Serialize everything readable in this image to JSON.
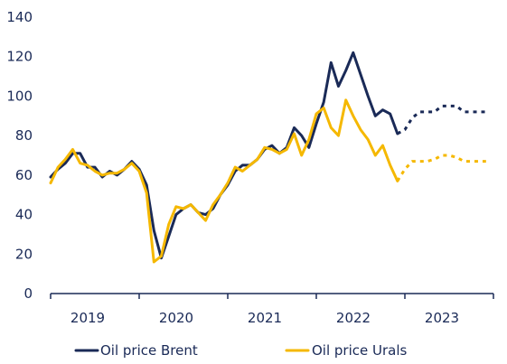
{
  "chart_data": {
    "type": "line",
    "title": "",
    "xlabel": "",
    "ylabel": "",
    "ylim": [
      0,
      140
    ],
    "yticks": [
      0,
      20,
      40,
      60,
      80,
      100,
      120,
      140
    ],
    "xticks": [
      "2019",
      "2020",
      "2021",
      "2022",
      "2023"
    ],
    "grid": false,
    "legend_position": "bottom",
    "colors": {
      "brent": "#1a2a57",
      "urals": "#f5b800",
      "axis": "#1a2a57"
    },
    "series": [
      {
        "name": "Oil price Brent",
        "key": "brent",
        "x": [
          "2019-01",
          "2019-02",
          "2019-03",
          "2019-04",
          "2019-05",
          "2019-06",
          "2019-07",
          "2019-08",
          "2019-09",
          "2019-10",
          "2019-11",
          "2019-12",
          "2020-01",
          "2020-02",
          "2020-03",
          "2020-04",
          "2020-05",
          "2020-06",
          "2020-07",
          "2020-08",
          "2020-09",
          "2020-10",
          "2020-11",
          "2020-12",
          "2021-01",
          "2021-02",
          "2021-03",
          "2021-04",
          "2021-05",
          "2021-06",
          "2021-07",
          "2021-08",
          "2021-09",
          "2021-10",
          "2021-11",
          "2021-12",
          "2022-01",
          "2022-02",
          "2022-03",
          "2022-04",
          "2022-05",
          "2022-06",
          "2022-07",
          "2022-08",
          "2022-09",
          "2022-10",
          "2022-11",
          "2022-12"
        ],
        "values": [
          59,
          63,
          66,
          71,
          71,
          64,
          64,
          59,
          62,
          60,
          63,
          67,
          63,
          55,
          32,
          18,
          29,
          40,
          43,
          45,
          41,
          40,
          43,
          50,
          55,
          62,
          65,
          65,
          68,
          73,
          75,
          71,
          74,
          84,
          80,
          74,
          86,
          97,
          117,
          105,
          113,
          122,
          111,
          100,
          90,
          93,
          91,
          81
        ]
      },
      {
        "name": "",
        "key": "brent-forecast",
        "dashed": true,
        "x": [
          "2022-12",
          "2023-01",
          "2023-02",
          "2023-03",
          "2023-04",
          "2023-05",
          "2023-06",
          "2023-07",
          "2023-08",
          "2023-09",
          "2023-10",
          "2023-11",
          "2023-12"
        ],
        "values": [
          81,
          83,
          89,
          92,
          92,
          92,
          95,
          95,
          95,
          92,
          92,
          92,
          92
        ]
      },
      {
        "name": "Oil price Urals",
        "key": "urals",
        "x": [
          "2019-01",
          "2019-02",
          "2019-03",
          "2019-04",
          "2019-05",
          "2019-06",
          "2019-07",
          "2019-08",
          "2019-09",
          "2019-10",
          "2019-11",
          "2019-12",
          "2020-01",
          "2020-02",
          "2020-03",
          "2020-04",
          "2020-05",
          "2020-06",
          "2020-07",
          "2020-08",
          "2020-09",
          "2020-10",
          "2020-11",
          "2020-12",
          "2021-01",
          "2021-02",
          "2021-03",
          "2021-04",
          "2021-05",
          "2021-06",
          "2021-07",
          "2021-08",
          "2021-09",
          "2021-10",
          "2021-11",
          "2021-12",
          "2022-01",
          "2022-02",
          "2022-03",
          "2022-04",
          "2022-05",
          "2022-06",
          "2022-07",
          "2022-08",
          "2022-09",
          "2022-10",
          "2022-11",
          "2022-12"
        ],
        "values": [
          56,
          64,
          68,
          73,
          66,
          65,
          62,
          60,
          61,
          61,
          63,
          66,
          62,
          51,
          16,
          19,
          35,
          44,
          43,
          45,
          41,
          37,
          45,
          50,
          56,
          64,
          62,
          65,
          68,
          74,
          73,
          71,
          73,
          81,
          70,
          78,
          91,
          94,
          84,
          80,
          98,
          90,
          83,
          78,
          70,
          75,
          65,
          57
        ]
      },
      {
        "name": "",
        "key": "urals-forecast",
        "dashed": true,
        "x": [
          "2022-12",
          "2023-01",
          "2023-02",
          "2023-03",
          "2023-04",
          "2023-05",
          "2023-06",
          "2023-07",
          "2023-08",
          "2023-09",
          "2023-10",
          "2023-11",
          "2023-12"
        ],
        "values": [
          57,
          63,
          67,
          67,
          67,
          68,
          70,
          70,
          69,
          67,
          67,
          67,
          67
        ]
      }
    ]
  }
}
